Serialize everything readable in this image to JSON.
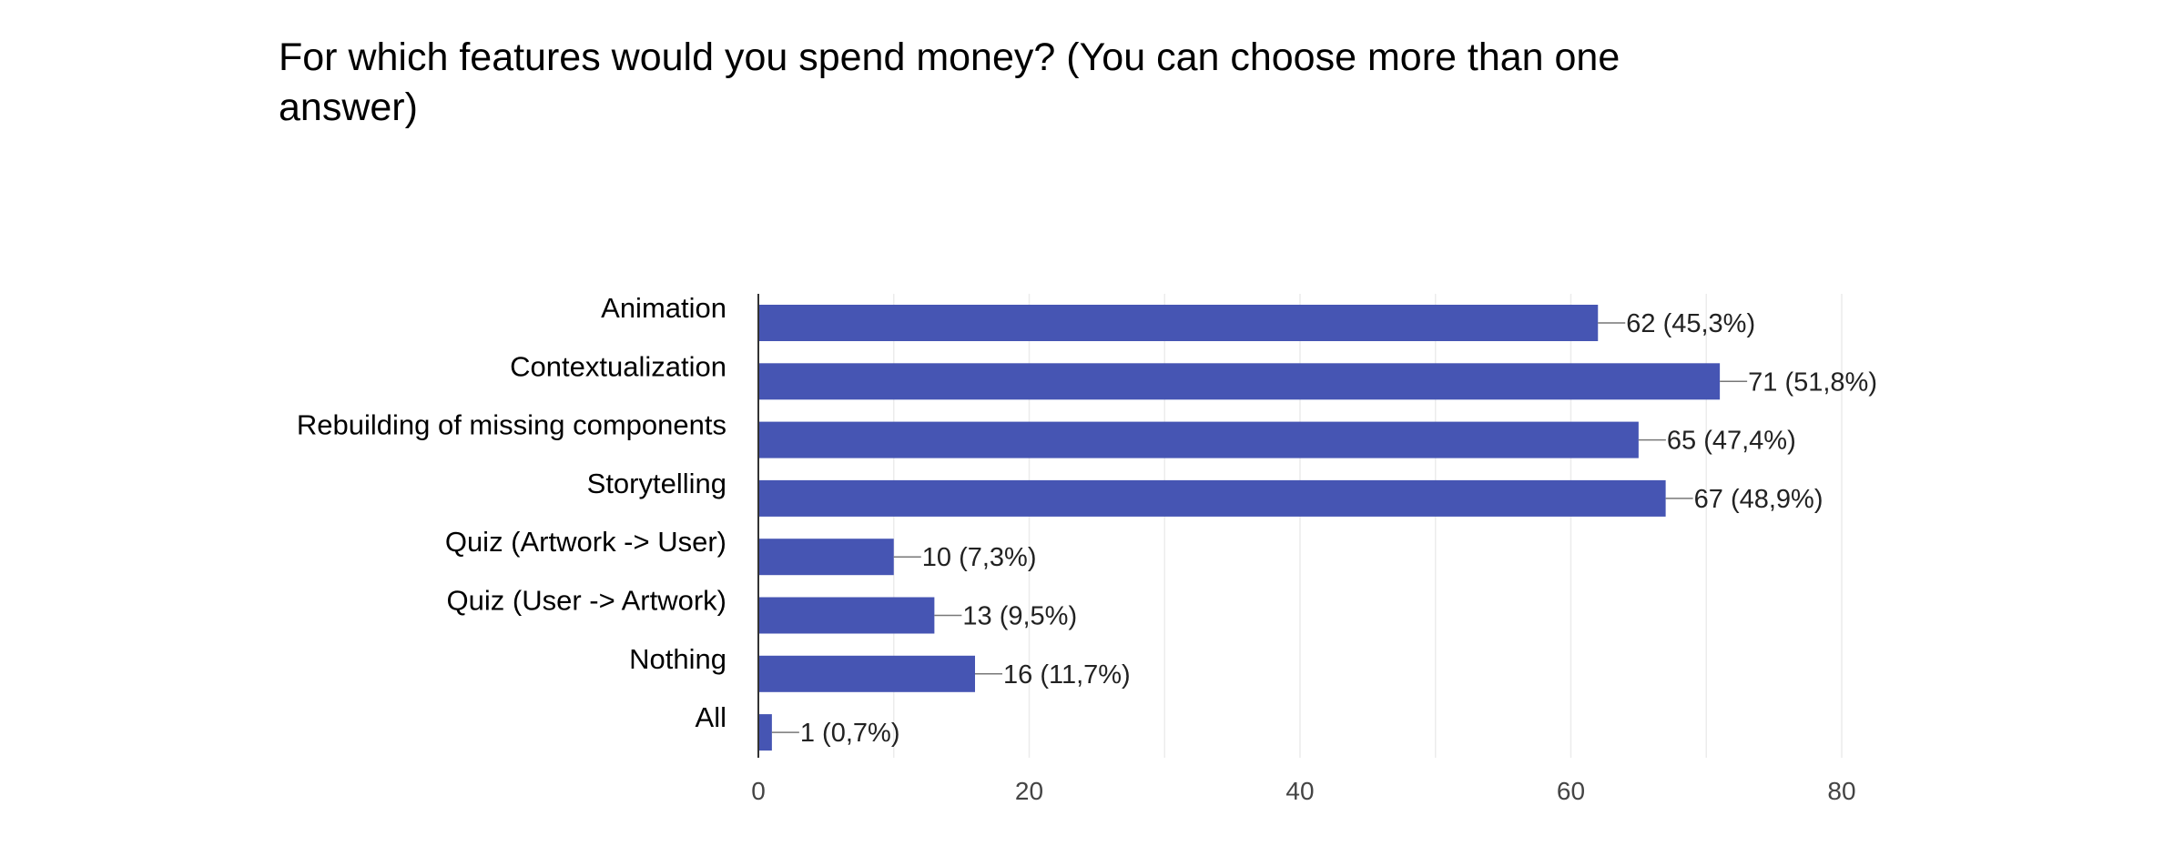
{
  "chart_data": {
    "type": "bar",
    "orientation": "horizontal",
    "title": "For which features would you spend money? (You can choose more than one answer)",
    "categories": [
      "Animation",
      "Contextualization",
      "Rebuilding of missing components",
      "Storytelling",
      "Quiz (Artwork -> User)",
      "Quiz (User -> Artwork)",
      "Nothing",
      "All"
    ],
    "values": [
      62,
      71,
      65,
      67,
      10,
      13,
      16,
      1
    ],
    "data_labels": [
      "62 (45,3%)",
      "71 (51,8%)",
      "65 (47,4%)",
      "67 (48,9%)",
      "10 (7,3%)",
      "13 (9,5%)",
      "16 (11,7%)",
      "1 (0,7%)"
    ],
    "xlim": [
      0,
      80
    ],
    "x_ticks": [
      0,
      20,
      40,
      60,
      80
    ],
    "x_tick_labels": [
      "0",
      "20",
      "40",
      "60",
      "80"
    ],
    "grid": true,
    "bar_color": "#4655b3",
    "grid_color": "#ececec"
  }
}
